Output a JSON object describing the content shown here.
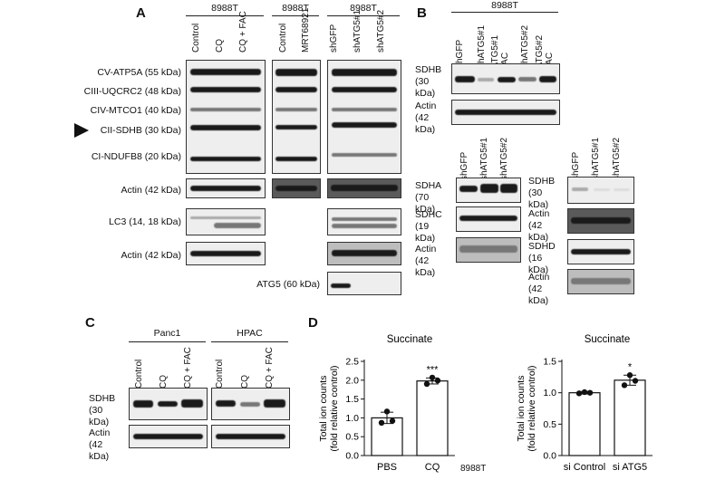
{
  "panelA": {
    "letter": "A",
    "group1": {
      "title": "8988T",
      "lanes": [
        "Control",
        "CQ",
        "CQ + FAC"
      ]
    },
    "group2": {
      "title": "8988T",
      "lanes": [
        "Control",
        "MRT68921"
      ]
    },
    "group3": {
      "title": "8988T",
      "lanes": [
        "shGFP",
        "shATG5#1",
        "shATG5#2"
      ]
    },
    "rows": [
      "CV-ATP5A (55 kDa)",
      "CIII-UQCRC2 (48 kDa)",
      "CIV-MTCO1 (40 kDa)",
      "CII-SDHB (30 kDa)",
      "CI-NDUFB8 (20 kDa)",
      "Actin (42 kDa)",
      "LC3 (14, 18 kDa)",
      "Actin (42 kDa)",
      "ATG5 (60 kDa)"
    ]
  },
  "panelB": {
    "letter": "B",
    "top": {
      "title": "8988T",
      "lanes": [
        "shGFP",
        "shATG5#1",
        "shATG5#1 + FAC",
        "shATG5#2",
        "shATG5#2 + FAC"
      ],
      "rows": [
        "SDHB (30 kDa)",
        "Actin (42 kDa)"
      ]
    },
    "left": {
      "lanes": [
        "shGFP",
        "shATG5#1",
        "shATG5#2"
      ],
      "rows": [
        "SDHA (70 kDa)",
        "SDHC (19 kDa)",
        "Actin (42 kDa)"
      ]
    },
    "right": {
      "lanes": [
        "shGFP",
        "shATG5#1",
        "shATG5#2"
      ],
      "rows": [
        "SDHB (30 kDa)",
        "Actin (42 kDa)",
        "SDHD (16 kDa)",
        "Actin (42 kDa)"
      ]
    }
  },
  "panelC": {
    "letter": "C",
    "group1": {
      "title": "Panc1",
      "lanes": [
        "Control",
        "CQ",
        "CQ + FAC"
      ]
    },
    "group2": {
      "title": "HPAC",
      "lanes": [
        "Control",
        "CQ",
        "CQ + FAC"
      ]
    },
    "rows": [
      "SDHB (30 kDa)",
      "Actin (42 kDa)"
    ]
  },
  "panelD": {
    "letter": "D",
    "footnote": "8988T",
    "chart_data": [
      {
        "type": "bar",
        "title": "Succinate",
        "ylabel": "Total ion counts (fold relative control)",
        "categories": [
          "PBS",
          "CQ"
        ],
        "values": [
          1.0,
          1.98
        ],
        "errors": [
          0.15,
          0.08
        ],
        "points": [
          [
            0.87,
            0.92,
            1.17
          ],
          [
            1.9,
            1.99,
            2.07
          ]
        ],
        "significance": [
          "",
          "***"
        ],
        "ylim": [
          0,
          2.5
        ],
        "yticks": [
          "0.0",
          "0.5",
          "1.0",
          "1.5",
          "2.0",
          "2.5"
        ]
      },
      {
        "type": "bar",
        "title": "Succinate",
        "ylabel": "Total ion counts (fold relative control)",
        "categories": [
          "si Control",
          "si ATG5"
        ],
        "values": [
          1.0,
          1.2
        ],
        "errors": [
          0.02,
          0.08
        ],
        "points": [
          [
            0.99,
            1.0,
            1.01
          ],
          [
            1.12,
            1.19,
            1.28
          ]
        ],
        "significance": [
          "",
          "*"
        ],
        "ylim": [
          0,
          1.5
        ],
        "yticks": [
          "0.0",
          "0.5",
          "1.0",
          "1.5"
        ]
      }
    ]
  }
}
